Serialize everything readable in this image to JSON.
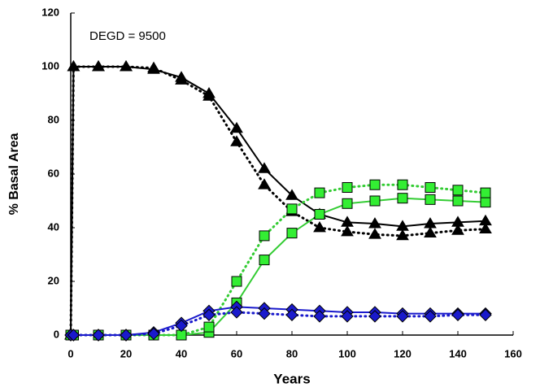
{
  "chart_data": {
    "type": "line",
    "annotation": "DEGD = 9500",
    "x_label": "Years",
    "y_label": "% Basal Area",
    "x": [
      0,
      1,
      10,
      20,
      30,
      40,
      50,
      60,
      70,
      80,
      90,
      100,
      110,
      120,
      130,
      140,
      150
    ],
    "series": [
      {
        "color": "#000000",
        "line_style": "solid",
        "marker": "triangle",
        "values": [
          0,
          100,
          100,
          100,
          99,
          96,
          90,
          77,
          62,
          52,
          45,
          42,
          41.5,
          40.5,
          41.5,
          42,
          42.5
        ]
      },
      {
        "color": "#000000",
        "line_style": "dotted",
        "marker": "triangle",
        "values": [
          0,
          100,
          100,
          100,
          99.5,
          95,
          89,
          72,
          56,
          46,
          40,
          38.5,
          37.5,
          37,
          38,
          39,
          39.5
        ]
      },
      {
        "color": "#33cc33",
        "line_style": "solid",
        "marker": "square",
        "values": [
          0,
          0,
          0,
          0,
          0,
          0,
          1,
          12,
          28,
          38,
          45,
          49,
          50,
          51,
          50.5,
          50,
          49.5
        ]
      },
      {
        "color": "#33cc33",
        "line_style": "dotted",
        "marker": "square",
        "values": [
          0,
          0,
          0,
          0,
          0,
          0,
          3,
          20,
          37,
          47,
          53,
          55,
          56,
          56,
          55,
          54,
          53
        ]
      },
      {
        "color": "#1a1acc",
        "line_style": "solid",
        "marker": "diamond",
        "values": [
          0,
          0,
          0,
          0,
          1,
          4.5,
          9,
          10.5,
          10,
          9.5,
          9,
          8.5,
          8.5,
          8,
          8,
          8,
          8
        ]
      },
      {
        "color": "#1a1acc",
        "line_style": "dotted",
        "marker": "diamond",
        "values": [
          0,
          0,
          0,
          0,
          0.5,
          3.5,
          7.5,
          8.5,
          8,
          7.5,
          7,
          7,
          7,
          7,
          7,
          7.5,
          7.5
        ]
      }
    ],
    "xlim": [
      0,
      160
    ],
    "xticks": [
      0,
      20,
      40,
      60,
      80,
      100,
      120,
      140,
      160
    ],
    "ylim": [
      0,
      120
    ],
    "yticks": [
      0,
      20,
      40,
      60,
      80,
      100,
      120
    ],
    "grid": false
  }
}
